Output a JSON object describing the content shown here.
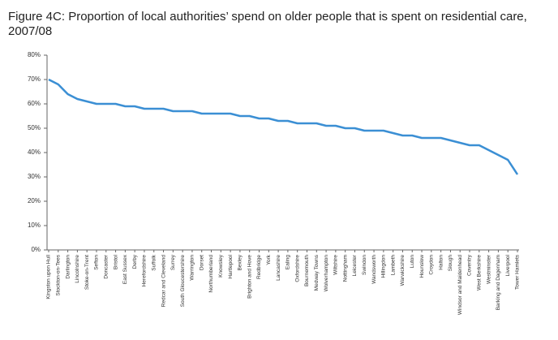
{
  "chart_data": {
    "type": "line",
    "title": "Figure 4C: Proportion of local authorities’ spend on older people that is spent on residential care, 2007/08",
    "categories": [
      "Kingston upon Hull",
      "Stockton-on-Tees",
      "Darlington",
      "Lincolnshire",
      "Stoke-on-Trent",
      "Sefton",
      "Doncaster",
      "Bristol",
      "East Sussex",
      "Derby",
      "Herefordshire",
      "Suffolk",
      "Redcar and Cleveland",
      "Surrey",
      "South Gloucestershire",
      "Warrington",
      "Dorset",
      "Northumberland",
      "Knowsley",
      "Hartlepool",
      "Bexley",
      "Brighton and Hove",
      "Redbridge",
      "York",
      "Lancashire",
      "Ealing",
      "Oxfordshire",
      "Bournemouth",
      "Medway Towns",
      "Wolverhampton",
      "Wiltshire",
      "Nottingham",
      "Leicester",
      "Swindon",
      "Wandsworth",
      "Hillingdon",
      "Lambeth",
      "Warwickshire",
      "Luton",
      "Hounslow",
      "Croydon",
      "Halton",
      "Slough",
      "Windsor and Maidenhead",
      "Coventry",
      "West Berkshire",
      "Westminster",
      "Barking and Dagenham",
      "Liverpool",
      "Tower Hamlets"
    ],
    "values": [
      70,
      68,
      64,
      62,
      61,
      60,
      60,
      60,
      59,
      59,
      58,
      58,
      58,
      57,
      57,
      57,
      56,
      56,
      56,
      56,
      55,
      55,
      54,
      54,
      53,
      53,
      52,
      52,
      52,
      51,
      51,
      50,
      50,
      49,
      49,
      49,
      48,
      47,
      47,
      46,
      46,
      46,
      45,
      44,
      43,
      43,
      41,
      39,
      37,
      31
    ],
    "color": "#3b8fd4",
    "ylim": [
      0,
      80
    ],
    "yticks": [
      {
        "value": 0,
        "label": "0%"
      },
      {
        "value": 10,
        "label": "10%"
      },
      {
        "value": 20,
        "label": "20%"
      },
      {
        "value": 30,
        "label": "30%"
      },
      {
        "value": 40,
        "label": "40%"
      },
      {
        "value": 50,
        "label": "50%"
      },
      {
        "value": 60,
        "label": "60%"
      },
      {
        "value": 70,
        "label": "70%"
      },
      {
        "value": 80,
        "label": "80%"
      }
    ],
    "grid": false
  }
}
